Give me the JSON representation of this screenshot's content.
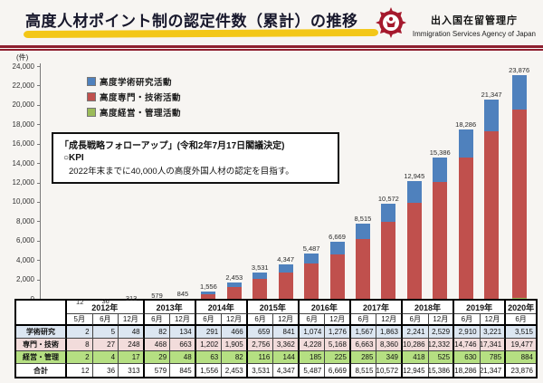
{
  "header": {
    "title": "高度人材ポイント制の認定件数（累計）の推移",
    "agency_ja": "出入国在留管理庁",
    "agency_en": "Immigration Services Agency of Japan"
  },
  "chart": {
    "unit_label": "(件)"
  },
  "legend": {
    "items": [
      {
        "label": "高度学術研究活動",
        "color": "#4f81bd"
      },
      {
        "label": "高度専門・技術活動",
        "color": "#c0504d"
      },
      {
        "label": "高度経営・管理活動",
        "color": "#9bbb59"
      }
    ]
  },
  "kpi_box": {
    "line1": "「成長戦略フォローアップ」(令和2年7月17日閣議決定)",
    "line2": "○KPI",
    "line3": "2022年末までに40,000人の高度外国人材の認定を目指す。"
  },
  "chart_data": {
    "type": "bar",
    "stacked": true,
    "title": "高度人材ポイント制の認定件数（累計）の推移",
    "unit": "件",
    "ylim": [
      0,
      24000
    ],
    "ytick_step": 2000,
    "grid": false,
    "legend_position": "upper-left",
    "categories": [
      "2012年5月",
      "2012年6月",
      "2012年12月",
      "2013年6月",
      "2013年12月",
      "2014年6月",
      "2014年12月",
      "2015年6月",
      "2015年12月",
      "2016年6月",
      "2016年12月",
      "2017年6月",
      "2017年12月",
      "2018年6月",
      "2018年12月",
      "2019年6月",
      "2019年12月",
      "2020年6月"
    ],
    "series": [
      {
        "name": "高度学術研究活動",
        "color": "#4f81bd",
        "values": [
          2,
          5,
          48,
          82,
          134,
          291,
          466,
          659,
          841,
          1074,
          1276,
          1567,
          1863,
          2241,
          2529,
          2910,
          3221,
          3515
        ]
      },
      {
        "name": "高度専門・技術活動",
        "color": "#c0504d",
        "values": [
          8,
          27,
          248,
          468,
          663,
          1202,
          1905,
          2756,
          3362,
          4228,
          5168,
          6663,
          8360,
          10286,
          12332,
          14746,
          17341,
          19477
        ]
      },
      {
        "name": "高度経営・管理活動",
        "color": "#9bbb59",
        "values": [
          2,
          4,
          17,
          29,
          48,
          63,
          82,
          116,
          144,
          185,
          225,
          285,
          349,
          418,
          525,
          630,
          785,
          884
        ]
      }
    ],
    "stack_order_bottom_to_top": [
      "高度経営・管理活動",
      "高度専門・技術活動",
      "高度学術研究活動"
    ],
    "totals": [
      12,
      36,
      313,
      579,
      845,
      1556,
      2453,
      3531,
      4347,
      5487,
      6669,
      8515,
      10572,
      12945,
      15386,
      18286,
      21347,
      23876
    ]
  },
  "table": {
    "year_headers": [
      {
        "label": "2012年",
        "span": 3
      },
      {
        "label": "2013年",
        "span": 2
      },
      {
        "label": "2014年",
        "span": 2
      },
      {
        "label": "2015年",
        "span": 2
      },
      {
        "label": "2016年",
        "span": 2
      },
      {
        "label": "2017年",
        "span": 2
      },
      {
        "label": "2018年",
        "span": 2
      },
      {
        "label": "2019年",
        "span": 2
      },
      {
        "label": "2020年",
        "span": 1
      }
    ],
    "month_headers": [
      "5月",
      "6月",
      "12月",
      "6月",
      "12月",
      "6月",
      "12月",
      "6月",
      "12月",
      "6月",
      "12月",
      "6月",
      "12月",
      "6月",
      "12月",
      "6月",
      "12月",
      "6月"
    ],
    "rows": [
      {
        "label": "学術研究",
        "bg": "#dce6f1",
        "values": [
          2,
          5,
          48,
          82,
          134,
          291,
          466,
          659,
          841,
          1074,
          1276,
          1567,
          1863,
          2241,
          2529,
          2910,
          3221,
          3515
        ]
      },
      {
        "label": "専門・技術",
        "bg": "#f2dcdb",
        "values": [
          8,
          27,
          248,
          468,
          663,
          1202,
          1905,
          2756,
          3362,
          4228,
          5168,
          6663,
          8360,
          10286,
          12332,
          14746,
          17341,
          19477
        ]
      },
      {
        "label": "経営・管理",
        "bg": "#b5df82",
        "values": [
          2,
          4,
          17,
          29,
          48,
          63,
          82,
          116,
          144,
          185,
          225,
          285,
          349,
          418,
          525,
          630,
          785,
          884
        ]
      },
      {
        "label": "合計",
        "bg": "#ffffff",
        "values": [
          12,
          36,
          313,
          579,
          845,
          1556,
          2453,
          3531,
          4347,
          5487,
          6669,
          8515,
          10572,
          12945,
          15386,
          18286,
          21347,
          23876
        ]
      }
    ]
  }
}
